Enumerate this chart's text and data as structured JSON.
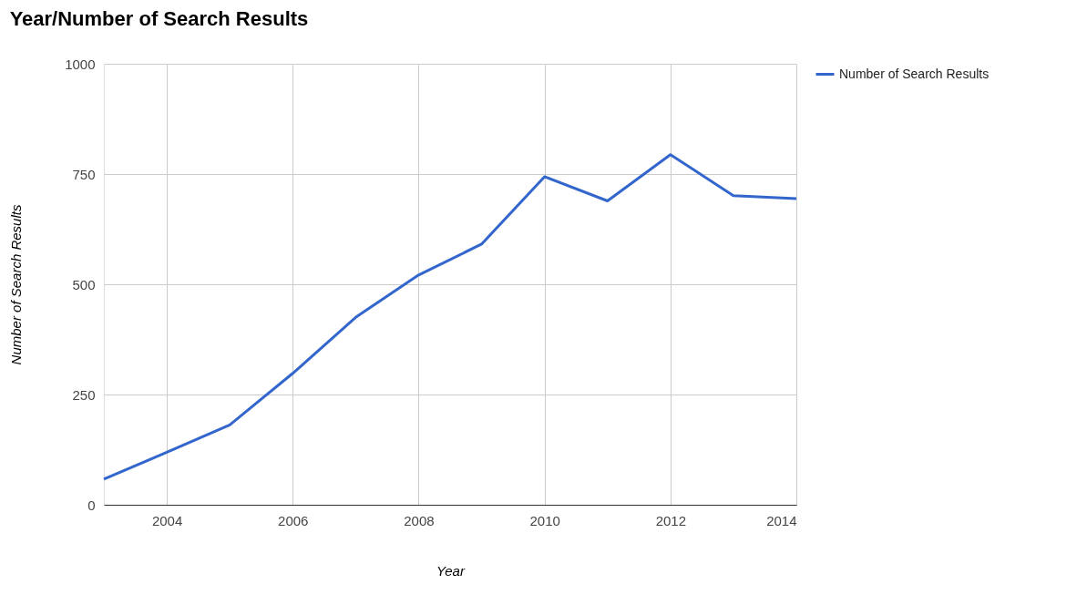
{
  "chart_data": {
    "type": "line",
    "title": "Year/Number of Search Results",
    "xlabel": "Year",
    "ylabel": "Number of Search Results",
    "x": [
      2003,
      2004,
      2005,
      2006,
      2007,
      2008,
      2009,
      2010,
      2011,
      2012,
      2013,
      2014
    ],
    "series": [
      {
        "name": "Number of Search Results",
        "color": "#3366cc",
        "values": [
          58,
          119,
          181,
          298,
          425,
          521,
          591,
          744,
          689,
          794,
          701,
          694
        ]
      }
    ],
    "xlim": [
      2003,
      2014
    ],
    "xticks": [
      2004,
      2006,
      2008,
      2010,
      2012,
      2014
    ],
    "ylim": [
      0,
      1000
    ],
    "yticks": [
      0,
      250,
      500,
      750,
      1000
    ],
    "grid": true,
    "legend": "top right",
    "marker": "none",
    "line_style": "solid"
  }
}
